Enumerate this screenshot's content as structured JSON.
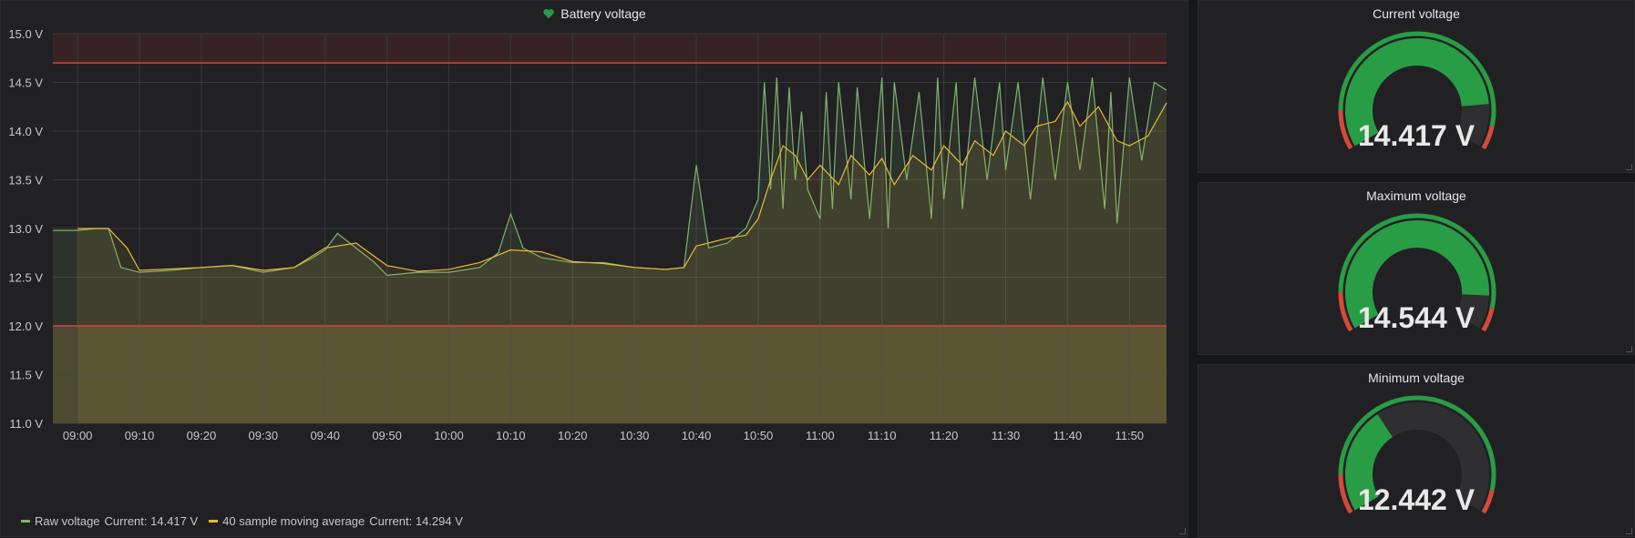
{
  "colors": {
    "raw": "#7eb26d",
    "avg": "#eab839",
    "threshold": "#e0403b",
    "gauge_green": "#299c46",
    "gauge_red": "#d44a3a",
    "gauge_track": "#2f2f32"
  },
  "graph": {
    "title": "Battery voltage",
    "title_icon": "heart-icon",
    "legend": [
      {
        "label": "Raw voltage",
        "current_label": "Current: 14.417 V"
      },
      {
        "label": "40 sample moving average",
        "current_label": "Current: 14.294 V"
      }
    ]
  },
  "chart_data": {
    "type": "line",
    "ylim": [
      11.0,
      15.0
    ],
    "y_ticks": [
      "11.0 V",
      "11.5 V",
      "12.0 V",
      "12.5 V",
      "13.0 V",
      "13.5 V",
      "14.0 V",
      "14.5 V",
      "15.0 V"
    ],
    "x_range": [
      "08:56",
      "11:56"
    ],
    "x_ticks": [
      "09:00",
      "09:10",
      "09:20",
      "09:30",
      "09:40",
      "09:50",
      "10:00",
      "10:10",
      "10:20",
      "10:30",
      "10:40",
      "10:50",
      "11:00",
      "11:10",
      "11:20",
      "11:30",
      "11:40",
      "11:50"
    ],
    "thresholds": [
      {
        "value": 14.7,
        "fill": "above"
      },
      {
        "value": 12.0,
        "fill": "below"
      }
    ],
    "grid": true,
    "legend_position": "bottom-left",
    "series": [
      {
        "name": "Raw voltage",
        "x": [
          "08:56",
          "09:00",
          "09:03",
          "09:05",
          "09:07",
          "09:10",
          "09:15",
          "09:20",
          "09:25",
          "09:30",
          "09:35",
          "09:38",
          "09:40",
          "09:42",
          "09:45",
          "09:48",
          "09:50",
          "09:55",
          "10:00",
          "10:05",
          "10:08",
          "10:10",
          "10:12",
          "10:15",
          "10:20",
          "10:25",
          "10:30",
          "10:35",
          "10:38",
          "10:40",
          "10:42",
          "10:45",
          "10:48",
          "10:50",
          "10:51",
          "10:52",
          "10:53",
          "10:54",
          "10:55",
          "10:56",
          "10:57",
          "10:58",
          "11:00",
          "11:01",
          "11:02",
          "11:03",
          "11:05",
          "11:06",
          "11:08",
          "11:10",
          "11:11",
          "11:12",
          "11:14",
          "11:16",
          "11:18",
          "11:19",
          "11:20",
          "11:22",
          "11:23",
          "11:25",
          "11:27",
          "11:29",
          "11:30",
          "11:32",
          "11:34",
          "11:36",
          "11:38",
          "11:40",
          "11:42",
          "11:44",
          "11:46",
          "11:47",
          "11:48",
          "11:50",
          "11:52",
          "11:54",
          "11:56"
        ],
        "values": [
          12.98,
          12.98,
          13.0,
          13.0,
          12.6,
          12.55,
          12.57,
          12.6,
          12.62,
          12.55,
          12.6,
          12.7,
          12.78,
          12.95,
          12.8,
          12.65,
          12.52,
          12.55,
          12.55,
          12.6,
          12.75,
          13.15,
          12.8,
          12.7,
          12.65,
          12.65,
          12.6,
          12.58,
          12.6,
          13.65,
          12.8,
          12.85,
          13.0,
          13.3,
          14.5,
          13.4,
          14.55,
          13.2,
          14.45,
          13.5,
          14.2,
          13.4,
          13.1,
          14.4,
          13.2,
          14.5,
          13.3,
          14.45,
          13.1,
          14.55,
          13.0,
          14.5,
          13.5,
          14.4,
          13.1,
          14.55,
          13.3,
          14.5,
          13.2,
          14.55,
          13.5,
          14.5,
          13.6,
          14.5,
          13.3,
          14.55,
          13.5,
          14.5,
          13.6,
          14.55,
          13.2,
          14.4,
          13.05,
          14.55,
          13.7,
          14.5,
          14.42
        ]
      },
      {
        "name": "40 sample moving average",
        "x": [
          "09:00",
          "09:05",
          "09:08",
          "09:10",
          "09:20",
          "09:25",
          "09:30",
          "09:35",
          "09:40",
          "09:45",
          "09:50",
          "09:55",
          "10:00",
          "10:05",
          "10:10",
          "10:15",
          "10:20",
          "10:25",
          "10:30",
          "10:35",
          "10:38",
          "10:40",
          "10:45",
          "10:48",
          "10:50",
          "10:52",
          "10:54",
          "10:56",
          "10:58",
          "11:00",
          "11:03",
          "11:05",
          "11:08",
          "11:10",
          "11:12",
          "11:15",
          "11:18",
          "11:20",
          "11:23",
          "11:25",
          "11:28",
          "11:30",
          "11:33",
          "11:35",
          "11:38",
          "11:40",
          "11:42",
          "11:45",
          "11:48",
          "11:50",
          "11:53",
          "11:56"
        ],
        "values": [
          13.0,
          13.0,
          12.8,
          12.57,
          12.6,
          12.62,
          12.57,
          12.6,
          12.8,
          12.85,
          12.62,
          12.56,
          12.58,
          12.65,
          12.78,
          12.76,
          12.66,
          12.64,
          12.6,
          12.58,
          12.6,
          12.82,
          12.9,
          12.93,
          13.1,
          13.5,
          13.85,
          13.75,
          13.5,
          13.65,
          13.45,
          13.75,
          13.55,
          13.72,
          13.45,
          13.75,
          13.6,
          13.85,
          13.65,
          13.9,
          13.75,
          14.0,
          13.85,
          14.05,
          14.1,
          14.3,
          14.05,
          14.25,
          13.9,
          13.85,
          13.95,
          14.29
        ]
      }
    ]
  },
  "gauges": [
    {
      "title": "Current voltage",
      "value_text": "14.417 V",
      "value": 14.417
    },
    {
      "title": "Maximum voltage",
      "value_text": "14.544 V",
      "value": 14.544
    },
    {
      "title": "Minimum voltage",
      "value_text": "12.442 V",
      "value": 12.442
    }
  ],
  "gauge_scale": {
    "min": 11.0,
    "max": 15.0,
    "low_threshold": 11.5,
    "high_threshold": 14.7
  }
}
